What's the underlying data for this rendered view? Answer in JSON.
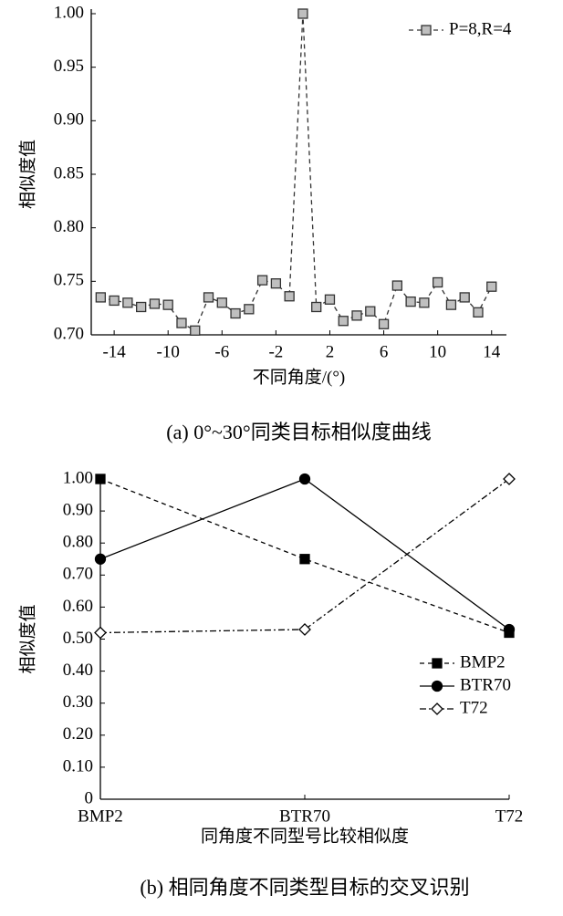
{
  "chart_data": [
    {
      "type": "line",
      "caption": "(a) 0°~30°同类目标相似度曲线",
      "x_label": "不同角度/(°)",
      "y_label": "相似度值",
      "x": [
        -15,
        -14,
        -13,
        -12,
        -11,
        -10,
        -9,
        -8,
        -7,
        -6,
        -5,
        -4,
        -3,
        -2,
        -1,
        0,
        1,
        2,
        3,
        4,
        5,
        6,
        7,
        8,
        9,
        10,
        11,
        12,
        13,
        14
      ],
      "series": [
        {
          "name": "P=8,R=4",
          "color": "#333333",
          "marker": "square",
          "marker_fill": "#bfbfbf",
          "line_style": "dashed",
          "values": [
            0.735,
            0.732,
            0.73,
            0.726,
            0.729,
            0.728,
            0.711,
            0.704,
            0.735,
            0.73,
            0.72,
            0.724,
            0.751,
            0.748,
            0.736,
            1.0,
            0.726,
            0.733,
            0.713,
            0.718,
            0.722,
            0.71,
            0.746,
            0.731,
            0.73,
            0.749,
            0.728,
            0.735,
            0.721,
            0.745
          ]
        }
      ],
      "xlim": [
        -15.7,
        15.1
      ],
      "xticks": [
        -14,
        -10,
        -6,
        -2,
        2,
        6,
        10,
        14
      ],
      "ylim": [
        0.7,
        1.0
      ],
      "yticks": [
        {
          "value": 0.7,
          "label": "0.70"
        },
        {
          "value": 0.75,
          "label": "0.75"
        },
        {
          "value": 0.8,
          "label": "0.80"
        },
        {
          "value": 0.85,
          "label": "0.85"
        },
        {
          "value": 0.9,
          "label": "0.90"
        },
        {
          "value": 0.95,
          "label": "0.95"
        },
        {
          "value": 1.0,
          "label": "1.00"
        }
      ],
      "legend": "top-right"
    },
    {
      "type": "line",
      "caption": "(b) 相同角度不同类型目标的交叉识别",
      "x_label": "同角度不同型号比较相似度",
      "y_label": "相似度值",
      "categories": [
        "BMP2",
        "BTR70",
        "T72"
      ],
      "series": [
        {
          "name": "BMP2",
          "color": "#000000",
          "marker": "square",
          "marker_fill": "#000000",
          "line_style": "dashed",
          "values": [
            1.0,
            0.75,
            0.52
          ]
        },
        {
          "name": "BTR70",
          "color": "#000000",
          "marker": "circle",
          "marker_fill": "#000000",
          "line_style": "solid",
          "values": [
            0.75,
            1.0,
            0.53
          ]
        },
        {
          "name": "T72",
          "color": "#000000",
          "marker": "diamond",
          "marker_fill": "#ffffff",
          "line_style": "dashdot",
          "values": [
            0.52,
            0.53,
            1.0
          ]
        }
      ],
      "ylim": [
        0,
        1.0
      ],
      "yticks": [
        0,
        {
          "value": 0.1,
          "label": "0.10"
        },
        {
          "value": 0.2,
          "label": "0.20"
        },
        {
          "value": 0.3,
          "label": "0.30"
        },
        {
          "value": 0.4,
          "label": "0.40"
        },
        {
          "value": 0.5,
          "label": "0.50"
        },
        {
          "value": 0.6,
          "label": "0.60"
        },
        {
          "value": 0.7,
          "label": "0.70"
        },
        {
          "value": 0.8,
          "label": "0.80"
        },
        {
          "value": 0.9,
          "label": "0.90"
        },
        {
          "value": 1.0,
          "label": "1.00"
        }
      ],
      "legend": "lower-right"
    }
  ]
}
